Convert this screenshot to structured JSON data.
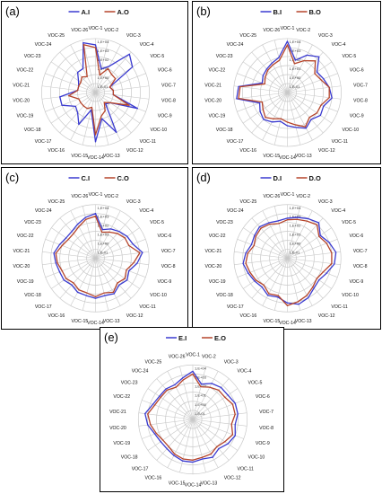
{
  "colors": {
    "indoor": "#3a3ad0",
    "outdoor": "#b5442a",
    "grid": "#c8c8c8"
  },
  "categories": [
    "VOC-1",
    "VOC-2",
    "VOC-3",
    "VOC-4",
    "VOC-5",
    "VOC-6",
    "VOC-7",
    "VOC-8",
    "VOC-9",
    "VOC-10",
    "VOC-11",
    "VOC-12",
    "VOC-13",
    "VOC-14",
    "VOC-15",
    "VOC-16",
    "VOC-17",
    "VOC-18",
    "VOC-19",
    "VOC-20",
    "VOC-21",
    "VOC-22",
    "VOC-23",
    "VOC-24",
    "VOC-25",
    "VOC-26"
  ],
  "chart_data": [
    {
      "type": "radar",
      "panel_label": "(a)",
      "scale": "log",
      "rlim": [
        0.01,
        10000
      ],
      "tick_labels": [
        "1,E+04",
        "1,E+03",
        "1,E+02",
        "1,E+01",
        "1,E+00",
        "1,E-01"
      ],
      "categories": [
        "VOC-1",
        "VOC-2",
        "VOC-3",
        "VOC-4",
        "VOC-5",
        "VOC-6",
        "VOC-7",
        "VOC-8",
        "VOC-9",
        "VOC-10",
        "VOC-11",
        "VOC-12",
        "VOC-13",
        "VOC-14",
        "VOC-15",
        "VOC-16",
        "VOC-17",
        "VOC-18",
        "VOC-19",
        "VOC-20",
        "VOC-21",
        "VOC-22",
        "VOC-23",
        "VOC-24",
        "VOC-25",
        "VOC-26"
      ],
      "series": [
        {
          "name": "A.I",
          "values": [
            2000,
            5,
            20,
            5000,
            1000,
            0.5,
            1,
            1,
            1000,
            1,
            0.5,
            1000,
            10,
            3000,
            1,
            100,
            10,
            5,
            100,
            100,
            1,
            1,
            2,
            10,
            10,
            5000
          ]
        },
        {
          "name": "A.O",
          "values": [
            1000,
            1,
            10,
            5,
            5,
            0.5,
            1,
            1,
            100,
            1,
            0.3,
            2,
            5,
            500,
            0.5,
            1,
            1,
            1,
            1,
            10,
            1,
            1,
            1,
            2,
            1,
            3000
          ]
        }
      ]
    },
    {
      "type": "radar",
      "panel_label": "(b)",
      "scale": "log",
      "rlim": [
        0.01,
        10000
      ],
      "tick_labels": [
        "1,E+04",
        "1,E+03",
        "1,E+02",
        "1,E+01",
        "1,E+00",
        "1,E-01"
      ],
      "categories": [
        "VOC-1",
        "VOC-2",
        "VOC-3",
        "VOC-4",
        "VOC-5",
        "VOC-6",
        "VOC-7",
        "VOC-8",
        "VOC-9",
        "VOC-10",
        "VOC-11",
        "VOC-12",
        "VOC-13",
        "VOC-14",
        "VOC-15",
        "VOC-16",
        "VOC-17",
        "VOC-18",
        "VOC-19",
        "VOC-20",
        "VOC-21",
        "VOC-22",
        "VOC-23",
        "VOC-24",
        "VOC-25",
        "VOC-26"
      ],
      "series": [
        {
          "name": "B.I",
          "values": [
            5000,
            50,
            500,
            2000,
            100,
            200,
            500,
            1000,
            200,
            300,
            100,
            300,
            100,
            50,
            20,
            50,
            100,
            50,
            20,
            5000,
            3000,
            10,
            20,
            30,
            50,
            100
          ]
        },
        {
          "name": "B.O",
          "values": [
            2000,
            20,
            100,
            500,
            50,
            100,
            500,
            500,
            100,
            100,
            50,
            200,
            50,
            20,
            10,
            20,
            50,
            20,
            10,
            3000,
            2000,
            5,
            10,
            20,
            30,
            50
          ]
        }
      ]
    },
    {
      "type": "radar",
      "panel_label": "(c)",
      "scale": "log",
      "rlim": [
        0.01,
        10000
      ],
      "tick_labels": [
        "1,E+04",
        "1,E+03",
        "1,E+02",
        "1,E+01",
        "1,E+00",
        "1,E-01"
      ],
      "categories": [
        "VOC-1",
        "VOC-2",
        "VOC-3",
        "VOC-4",
        "VOC-5",
        "VOC-6",
        "VOC-7",
        "VOC-8",
        "VOC-9",
        "VOC-10",
        "VOC-11",
        "VOC-12",
        "VOC-13",
        "VOC-14",
        "VOC-15",
        "VOC-16",
        "VOC-17",
        "VOC-18",
        "VOC-19",
        "VOC-20",
        "VOC-21",
        "VOC-22",
        "VOC-23",
        "VOC-24",
        "VOC-25",
        "VOC-26"
      ],
      "series": [
        {
          "name": "C.I",
          "values": [
            1000,
            20,
            50,
            100,
            200,
            300,
            2000,
            500,
            100,
            200,
            100,
            300,
            200,
            300,
            200,
            200,
            100,
            200,
            200,
            300,
            500,
            200,
            100,
            100,
            200,
            500
          ]
        },
        {
          "name": "C.O",
          "values": [
            500,
            10,
            20,
            50,
            100,
            100,
            1000,
            200,
            50,
            100,
            50,
            200,
            100,
            200,
            100,
            100,
            50,
            100,
            100,
            200,
            300,
            100,
            50,
            50,
            100,
            300
          ]
        }
      ]
    },
    {
      "type": "radar",
      "panel_label": "(d)",
      "scale": "log",
      "rlim": [
        0.01,
        10000
      ],
      "tick_labels": [
        "1,E+04",
        "1,E+03",
        "1,E+02",
        "1,E+01",
        "1,E+00",
        "1,E-01"
      ],
      "categories": [
        "VOC-1",
        "VOC-2",
        "VOC-3",
        "VOC-4",
        "VOC-5",
        "VOC-6",
        "VOC-7",
        "VOC-8",
        "VOC-9",
        "VOC-10",
        "VOC-11",
        "VOC-12",
        "VOC-13",
        "VOC-14",
        "VOC-15",
        "VOC-16",
        "VOC-17",
        "VOC-18",
        "VOC-19",
        "VOC-20",
        "VOC-21",
        "VOC-22",
        "VOC-23",
        "VOC-24",
        "VOC-25",
        "VOC-26"
      ],
      "series": [
        {
          "name": "D.I",
          "values": [
            300,
            500,
            1000,
            2000,
            300,
            1000,
            3000,
            2000,
            500,
            200,
            300,
            1000,
            2000,
            1000,
            300,
            500,
            200,
            300,
            500,
            1000,
            500,
            200,
            300,
            500,
            300,
            200
          ]
        },
        {
          "name": "D.O",
          "values": [
            200,
            300,
            500,
            1000,
            200,
            500,
            1000,
            1000,
            200,
            100,
            200,
            500,
            1000,
            2000,
            200,
            300,
            100,
            200,
            300,
            500,
            300,
            100,
            200,
            300,
            200,
            100
          ]
        }
      ]
    },
    {
      "type": "radar",
      "panel_label": "(e)",
      "scale": "log",
      "rlim": [
        0.01,
        10000
      ],
      "tick_labels": [
        "1,E+04",
        "1,E+03",
        "1,E+02",
        "1,E+01",
        "1,E+00",
        "1,E-01"
      ],
      "categories": [
        "VOC-1",
        "VOC-2",
        "VOC-3",
        "VOC-4",
        "VOC-5",
        "VOC-6",
        "VOC-7",
        "VOC-8",
        "VOC-9",
        "VOC-10",
        "VOC-11",
        "VOC-12",
        "VOC-13",
        "VOC-14",
        "VOC-15",
        "VOC-16",
        "VOC-17",
        "VOC-18",
        "VOC-19",
        "VOC-20",
        "VOC-21",
        "VOC-22",
        "VOC-23",
        "VOC-24",
        "VOC-25",
        "VOC-26"
      ],
      "series": [
        {
          "name": "E.I",
          "values": [
            2000,
            100,
            300,
            500,
            500,
            1000,
            1000,
            500,
            1000,
            500,
            200,
            500,
            300,
            500,
            500,
            300,
            200,
            200,
            300,
            1000,
            2000,
            500,
            300,
            300,
            200,
            500
          ]
        },
        {
          "name": "E.O",
          "values": [
            1000,
            50,
            100,
            200,
            200,
            500,
            500,
            200,
            500,
            200,
            100,
            200,
            200,
            300,
            300,
            200,
            100,
            100,
            200,
            500,
            1000,
            300,
            200,
            200,
            100,
            300
          ]
        }
      ]
    }
  ]
}
